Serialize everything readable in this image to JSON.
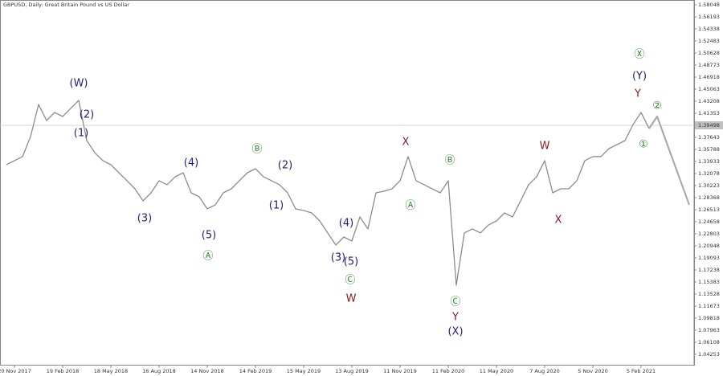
{
  "chart_data": {
    "type": "line",
    "title": "GBPUSD, Daily:  Great Britain Pound vs US Dollar",
    "categories": [
      null,
      "20 Nov 2017",
      null,
      null,
      null,
      null,
      null,
      "19 Feb 2018",
      null,
      null,
      null,
      null,
      null,
      "18 May 2018",
      null,
      null,
      null,
      null,
      null,
      "16 Aug 2018",
      null,
      null,
      null,
      null,
      null,
      "14 Nov 2018",
      null,
      null,
      null,
      null,
      null,
      "14 Feb 2019",
      null,
      null,
      null,
      null,
      null,
      "15 May 2019",
      null,
      null,
      null,
      null,
      null,
      "13 Aug 2019",
      null,
      null,
      null,
      null,
      null,
      "11 Nov 2019",
      null,
      null,
      null,
      null,
      null,
      "11 Feb 2020",
      null,
      null,
      null,
      null,
      null,
      "11 May 2020",
      null,
      null,
      null,
      null,
      null,
      "7 Aug 2020",
      null,
      null,
      null,
      null,
      null,
      "5 Nov 2020",
      null,
      null,
      null,
      null,
      null,
      "5 Feb 2021",
      null,
      null,
      null,
      null,
      null,
      null
    ],
    "series": [
      {
        "color": "#8c8c8c",
        "values": [
          1.3344,
          1.3406,
          1.3468,
          1.3777,
          1.4271,
          1.4024,
          1.4148,
          1.4086,
          1.421,
          1.4333,
          1.3715,
          1.3529,
          1.3406,
          1.3344,
          1.322,
          1.3097,
          1.2973,
          1.2787,
          1.2911,
          1.3097,
          1.3035,
          1.3158,
          1.322,
          1.2911,
          1.2849,
          1.2664,
          1.2726,
          1.2911,
          1.2973,
          1.3097,
          1.322,
          1.3282,
          1.3158,
          1.3097,
          1.3035,
          1.2911,
          1.2664,
          1.2639,
          1.2602,
          1.2478,
          1.2293,
          1.2107,
          1.2231,
          1.2169,
          1.254,
          1.2355,
          1.2911,
          1.2936,
          1.2973,
          1.3097,
          1.3468,
          1.3097,
          1.3035,
          1.2973,
          1.2911,
          1.3097,
          1.1489,
          1.2293,
          1.2355,
          1.2293,
          1.2416,
          1.2478,
          1.2602,
          1.254,
          1.2787,
          1.3035,
          1.3158,
          1.3406,
          1.2911,
          1.2973,
          1.2973,
          1.3097,
          1.3406,
          1.3468,
          1.3468,
          1.3591,
          1.3653,
          1.3715,
          1.3962,
          1.4148,
          1.39,
          null,
          null,
          null,
          null,
          null
        ]
      },
      {
        "color": "#a6a6a6",
        "values": [
          null,
          null,
          null,
          null,
          null,
          null,
          null,
          null,
          null,
          null,
          null,
          null,
          null,
          null,
          null,
          null,
          null,
          null,
          null,
          null,
          null,
          null,
          null,
          null,
          null,
          null,
          null,
          null,
          null,
          null,
          null,
          null,
          null,
          null,
          null,
          null,
          null,
          null,
          null,
          null,
          null,
          null,
          null,
          null,
          null,
          null,
          null,
          null,
          null,
          null,
          null,
          null,
          null,
          null,
          null,
          null,
          null,
          null,
          null,
          null,
          null,
          null,
          null,
          null,
          null,
          null,
          null,
          null,
          null,
          null,
          null,
          null,
          null,
          null,
          null,
          null,
          null,
          null,
          null,
          null,
          1.39,
          1.4086,
          1.3746,
          1.3406,
          1.3066,
          1.2726
        ]
      }
    ],
    "ylim": [
      1.04253,
      1.58048
    ],
    "yticks": [
      1.04253,
      1.06108,
      1.07963,
      1.09818,
      1.11673,
      1.13528,
      1.15383,
      1.17238,
      1.19093,
      1.20948,
      1.22803,
      1.24658,
      1.26513,
      1.28368,
      1.30223,
      1.32078,
      1.33933,
      1.35788,
      1.37643,
      1.41353,
      1.43208,
      1.45063,
      1.46918,
      1.48773,
      1.50628,
      1.52483,
      1.54338,
      1.56193,
      1.58048
    ],
    "current_price": 1.39498,
    "annotations": [
      {
        "text": "(W)",
        "color": "#1f1f7a"
      },
      {
        "text": "(2)",
        "color": "#1f1f7a"
      },
      {
        "text": "(1)",
        "color": "#1f1f7a"
      },
      {
        "text": "(4)",
        "color": "#1f1f7a"
      },
      {
        "text": "(3)",
        "color": "#1f1f7a"
      },
      {
        "text": "(5)",
        "color": "#1f1f7a"
      },
      {
        "text": "(2)",
        "color": "#1f1f7a"
      },
      {
        "text": "(1)",
        "color": "#1f1f7a"
      },
      {
        "text": "(4)",
        "color": "#1f1f7a"
      },
      {
        "text": "(3)",
        "color": "#1f1f7a"
      },
      {
        "text": "(5)",
        "color": "#1f1f7a"
      },
      {
        "text": "(X)",
        "color": "#1f1f7a"
      },
      {
        "text": "(Y)",
        "color": "#1f1f7a"
      },
      {
        "text": "Ⓐ",
        "color": "#2e8b2e"
      },
      {
        "text": "Ⓑ",
        "color": "#2e8b2e"
      },
      {
        "text": "Ⓒ",
        "color": "#2e8b2e"
      },
      {
        "text": "Ⓐ",
        "color": "#2e8b2e"
      },
      {
        "text": "Ⓑ",
        "color": "#2e8b2e"
      },
      {
        "text": "Ⓒ",
        "color": "#2e8b2e"
      },
      {
        "text": "Ⓧ",
        "color": "#2e8b2e"
      },
      {
        "text": "②",
        "color": "#2e8b2e"
      },
      {
        "text": "①",
        "color": "#2e8b2e"
      },
      {
        "text": "W",
        "color": "#8b1a1a"
      },
      {
        "text": "X",
        "color": "#8b1a1a"
      },
      {
        "text": "Y",
        "color": "#8b1a1a"
      },
      {
        "text": "W",
        "color": "#8b1a1a"
      },
      {
        "text": "X",
        "color": "#8b1a1a"
      },
      {
        "text": "Y",
        "color": "#8b1a1a"
      }
    ]
  }
}
